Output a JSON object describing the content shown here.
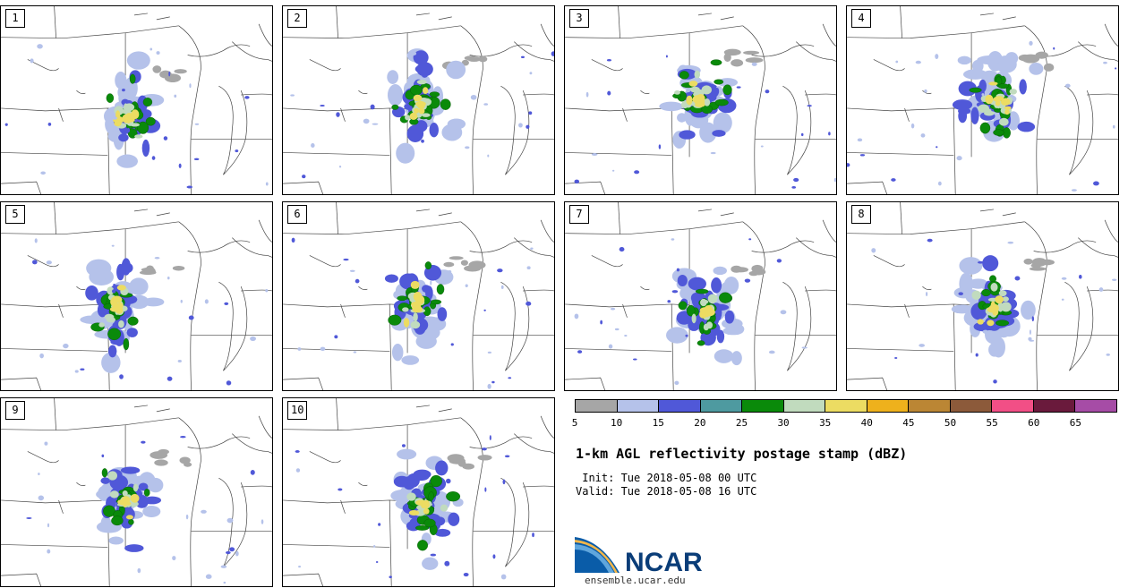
{
  "panels": [
    {
      "label": "1"
    },
    {
      "label": "2"
    },
    {
      "label": "3"
    },
    {
      "label": "4"
    },
    {
      "label": "5"
    },
    {
      "label": "6"
    },
    {
      "label": "7"
    },
    {
      "label": "8"
    },
    {
      "label": "9"
    },
    {
      "label": "10"
    }
  ],
  "colorbar": {
    "colors": [
      "#a6a6a6",
      "#b5c2ea",
      "#5058d8",
      "#4e9aa0",
      "#0a8a0a",
      "#c1dbbe",
      "#ecdc62",
      "#eeb11c",
      "#bb8634",
      "#8c5a3a",
      "#f24f86",
      "#6a1a3c",
      "#a64ca6"
    ],
    "ticks": [
      "5",
      "10",
      "15",
      "20",
      "25",
      "30",
      "35",
      "40",
      "45",
      "50",
      "55",
      "60",
      "65"
    ]
  },
  "title": "1-km AGL reflectivity postage stamp (dBZ)",
  "init": " Init: Tue 2018-05-08 00 UTC",
  "valid": "Valid: Tue 2018-05-08 16 UTC",
  "logo": {
    "text": "NCAR",
    "url": "ensemble.ucar.edu"
  },
  "colors": {
    "green": "#0a8a0a",
    "blue": "#5058d8",
    "lightblue": "#b5c2ea",
    "yellow": "#ecdc62",
    "gray": "#a6a6a6",
    "pale": "#c1dbbe"
  }
}
